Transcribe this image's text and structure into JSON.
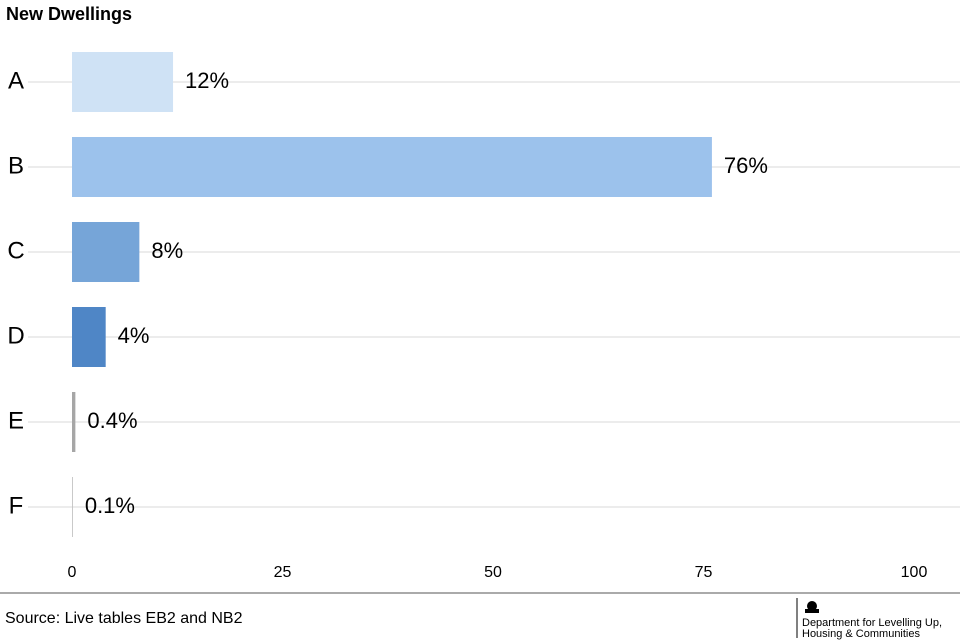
{
  "chart_data": {
    "type": "bar",
    "orientation": "horizontal",
    "title": "New Dwellings",
    "categories": [
      "A",
      "B",
      "C",
      "D",
      "E",
      "F"
    ],
    "values": [
      12,
      76,
      8,
      4,
      0.4,
      0.1
    ],
    "value_labels": [
      "12%",
      "76%",
      "8%",
      "4%",
      "0.4%",
      "0.1%"
    ],
    "colors": [
      "#cfe2f5",
      "#9cc2ec",
      "#76a5d8",
      "#4f86c6",
      "#a6a6a6",
      "#bfbfbf"
    ],
    "xlim": [
      0,
      100
    ],
    "xticks": [
      0,
      25,
      50,
      75,
      100
    ]
  },
  "footer": {
    "source": "Source: Live tables EB2 and NB2",
    "logo_lines": [
      "Department for Levelling Up,",
      "Housing & Communities"
    ]
  }
}
